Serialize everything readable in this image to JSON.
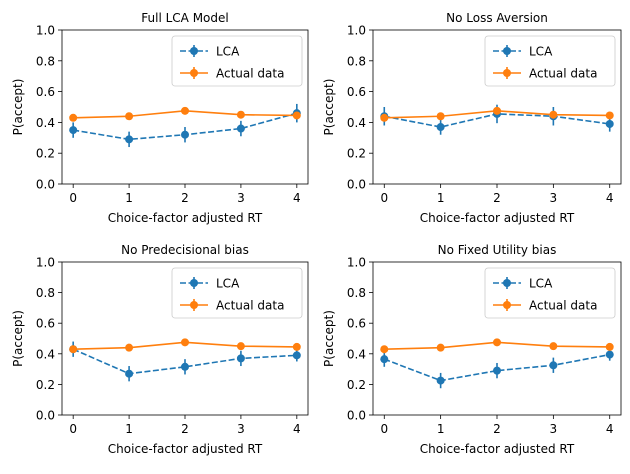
{
  "figure": {
    "background": "#ffffff"
  },
  "chart_data": [
    {
      "type": "line",
      "title": "Full LCA Model",
      "xlabel": "Choice-factor adjusted RT",
      "ylabel": "P(accept)",
      "x": [
        0,
        1,
        2,
        3,
        4
      ],
      "xticks": [
        "0",
        "1",
        "2",
        "3",
        "4"
      ],
      "yticks": [
        "0.0",
        "0.2",
        "0.4",
        "0.6",
        "0.8",
        "1.0"
      ],
      "xlim": [
        -0.2,
        4.2
      ],
      "ylim": [
        0,
        1
      ],
      "legend_position": "top-right",
      "series": [
        {
          "name": "LCA",
          "color": "#1f77b4",
          "linestyle": "dashed",
          "marker": "circle",
          "values": [
            0.35,
            0.29,
            0.32,
            0.36,
            0.46
          ],
          "error": [
            0.05,
            0.05,
            0.05,
            0.05,
            0.06
          ]
        },
        {
          "name": "Actual data",
          "color": "#ff7f0e",
          "linestyle": "solid",
          "marker": "circle",
          "values": [
            0.43,
            0.44,
            0.475,
            0.45,
            0.445
          ],
          "error": [
            0.015,
            0.015,
            0.015,
            0.015,
            0.015
          ]
        }
      ]
    },
    {
      "type": "line",
      "title": "No Loss Aversion",
      "xlabel": "Choice-factor adjusted RT",
      "ylabel": "P(accept)",
      "x": [
        0,
        1,
        2,
        3,
        4
      ],
      "xticks": [
        "0",
        "1",
        "2",
        "3",
        "4"
      ],
      "yticks": [
        "0.0",
        "0.2",
        "0.4",
        "0.6",
        "0.8",
        "1.0"
      ],
      "xlim": [
        -0.2,
        4.2
      ],
      "ylim": [
        0,
        1
      ],
      "legend_position": "top-right",
      "series": [
        {
          "name": "LCA",
          "color": "#1f77b4",
          "linestyle": "dashed",
          "marker": "circle",
          "values": [
            0.44,
            0.37,
            0.455,
            0.44,
            0.39
          ],
          "error": [
            0.06,
            0.05,
            0.06,
            0.06,
            0.05
          ]
        },
        {
          "name": "Actual data",
          "color": "#ff7f0e",
          "linestyle": "solid",
          "marker": "circle",
          "values": [
            0.43,
            0.44,
            0.475,
            0.45,
            0.445
          ],
          "error": [
            0.015,
            0.015,
            0.015,
            0.015,
            0.015
          ]
        }
      ]
    },
    {
      "type": "line",
      "title": "No Predecisional bias",
      "xlabel": "Choice-factor adjusted RT",
      "ylabel": "P(accept)",
      "x": [
        0,
        1,
        2,
        3,
        4
      ],
      "xticks": [
        "0",
        "1",
        "2",
        "3",
        "4"
      ],
      "yticks": [
        "0.0",
        "0.2",
        "0.4",
        "0.6",
        "0.8",
        "1.0"
      ],
      "xlim": [
        -0.2,
        4.2
      ],
      "ylim": [
        0,
        1
      ],
      "legend_position": "top-right",
      "series": [
        {
          "name": "LCA",
          "color": "#1f77b4",
          "linestyle": "dashed",
          "marker": "circle",
          "values": [
            0.43,
            0.27,
            0.315,
            0.37,
            0.39
          ],
          "error": [
            0.05,
            0.05,
            0.05,
            0.05,
            0.04
          ]
        },
        {
          "name": "Actual data",
          "color": "#ff7f0e",
          "linestyle": "solid",
          "marker": "circle",
          "values": [
            0.43,
            0.44,
            0.475,
            0.45,
            0.445
          ],
          "error": [
            0.015,
            0.015,
            0.015,
            0.015,
            0.015
          ]
        }
      ]
    },
    {
      "type": "line",
      "title": "No Fixed Utility bias",
      "xlabel": "Choice-factor adjusted RT",
      "ylabel": "P(accept)",
      "x": [
        0,
        1,
        2,
        3,
        4
      ],
      "xticks": [
        "0",
        "1",
        "2",
        "3",
        "4"
      ],
      "yticks": [
        "0.0",
        "0.2",
        "0.4",
        "0.6",
        "0.8",
        "1.0"
      ],
      "xlim": [
        -0.2,
        4.2
      ],
      "ylim": [
        0,
        1
      ],
      "legend_position": "top-right",
      "series": [
        {
          "name": "LCA",
          "color": "#1f77b4",
          "linestyle": "dashed",
          "marker": "circle",
          "values": [
            0.365,
            0.225,
            0.29,
            0.325,
            0.395
          ],
          "error": [
            0.05,
            0.05,
            0.05,
            0.05,
            0.04
          ]
        },
        {
          "name": "Actual data",
          "color": "#ff7f0e",
          "linestyle": "solid",
          "marker": "circle",
          "values": [
            0.43,
            0.44,
            0.475,
            0.45,
            0.445
          ],
          "error": [
            0.015,
            0.015,
            0.015,
            0.015,
            0.015
          ]
        }
      ]
    }
  ]
}
